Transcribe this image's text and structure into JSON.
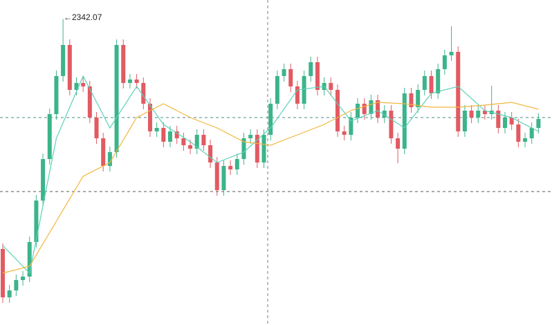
{
  "chart_data": {
    "type": "candlestick",
    "open": [
      2259,
      2241.5,
      2244,
      2247.75,
      2249,
      2261.5,
      2276.5,
      2291.5,
      2307.75,
      2321.5,
      2332.75,
      2316.5,
      2319,
      2317.75,
      2306.5,
      2299,
      2289,
      2294,
      2332.75,
      2319,
      2320.25,
      2319,
      2311.5,
      2301.5,
      2302.75,
      2297.75,
      2301.5,
      2299,
      2296.5,
      2295.25,
      2300.25,
      2296.5,
      2290.25,
      2280.25,
      2289,
      2287.75,
      2291.5,
      2299,
      2300.25,
      2290.25,
      2300.25,
      2311.5,
      2321.5,
      2324,
      2317.75,
      2311.5,
      2321.5,
      2326.5,
      2316.5,
      2319,
      2316.5,
      2301.5,
      2300.25,
      2306.5,
      2311.5,
      2307.75,
      2312.75,
      2306.5,
      2309,
      2299,
      2295.25,
      2315.25,
      2310.25,
      2316.5,
      2321.5,
      2315.25,
      2324,
      2329,
      2330.25,
      2301.5,
      2309,
      2306.5,
      2309,
      2307.75,
      2309,
      2302.75,
      2306.5,
      2304,
      2297.75,
      2299,
      2302.75
    ],
    "high": [
      2261,
      2246,
      2249.75,
      2251,
      2263.5,
      2278.5,
      2293.5,
      2309.75,
      2323.5,
      2342.07,
      2334.75,
      2321,
      2321,
      2319.75,
      2308.5,
      2301,
      2296,
      2334.75,
      2334.75,
      2322.25,
      2322.25,
      2321,
      2313.5,
      2304.75,
      2304.75,
      2303.5,
      2303.5,
      2301,
      2298.5,
      2302.25,
      2302.25,
      2298.5,
      2292.25,
      2291,
      2291,
      2293.5,
      2301,
      2302.25,
      2302.25,
      2302.25,
      2313.5,
      2323.5,
      2326,
      2326,
      2319.75,
      2323.5,
      2328.5,
      2328.5,
      2321,
      2321,
      2318.5,
      2303.5,
      2308.5,
      2313.5,
      2313.5,
      2314.75,
      2314.75,
      2311,
      2311,
      2301,
      2317.25,
      2317.25,
      2318.5,
      2323.5,
      2323.5,
      2326,
      2331,
      2339.5,
      2332.25,
      2311,
      2311,
      2311,
      2311,
      2318,
      2311,
      2308.5,
      2308.5,
      2306,
      2301,
      2304.75,
      2308
    ],
    "low": [
      2239.5,
      2239.5,
      2242,
      2245.75,
      2247,
      2259.5,
      2274.5,
      2289.5,
      2305.75,
      2319.5,
      2314.5,
      2314.5,
      2315.75,
      2304.5,
      2297,
      2287,
      2287,
      2292,
      2317,
      2317,
      2317,
      2309.5,
      2299.5,
      2299.5,
      2295.75,
      2295.75,
      2297,
      2294.5,
      2293.25,
      2293.25,
      2294.5,
      2288.25,
      2278.25,
      2278.25,
      2285.75,
      2285.75,
      2289.5,
      2297,
      2288.25,
      2288.25,
      2298.25,
      2309.5,
      2319.5,
      2315.75,
      2309.5,
      2309.5,
      2319.5,
      2314.5,
      2314.5,
      2314.5,
      2299.5,
      2298.25,
      2298.25,
      2304.5,
      2305.75,
      2305.75,
      2304.5,
      2304.5,
      2297,
      2290,
      2293.25,
      2308.25,
      2308.25,
      2314.5,
      2313.25,
      2313.25,
      2322,
      2327,
      2299.5,
      2299.5,
      2304.5,
      2304.5,
      2305.75,
      2305.75,
      2300.75,
      2300.75,
      2302,
      2295.75,
      2295.75,
      2297,
      2300.75
    ],
    "close": [
      2241.5,
      2244,
      2247.75,
      2249,
      2261.5,
      2276.5,
      2291.5,
      2307.75,
      2321.5,
      2332.75,
      2316.5,
      2319,
      2317.75,
      2306.5,
      2299,
      2289,
      2294,
      2332.75,
      2319,
      2320.25,
      2319,
      2311.5,
      2301.5,
      2302.75,
      2297.75,
      2301.5,
      2299,
      2296.5,
      2295.25,
      2300.25,
      2296.5,
      2290.25,
      2280.25,
      2289,
      2287.75,
      2291.5,
      2299,
      2300.25,
      2290.25,
      2300.25,
      2311.5,
      2321.5,
      2324,
      2317.75,
      2311.5,
      2321.5,
      2326.5,
      2316.5,
      2319,
      2316.5,
      2301.5,
      2300.25,
      2306.5,
      2311.5,
      2307.75,
      2312.75,
      2306.5,
      2309,
      2299,
      2295.25,
      2315.25,
      2310.25,
      2316.5,
      2321.5,
      2315.25,
      2324,
      2329,
      2330.25,
      2301.5,
      2309,
      2306.5,
      2309,
      2307.75,
      2309,
      2302.75,
      2306.5,
      2304,
      2297.75,
      2299,
      2302.75,
      2306
    ],
    "up_color": "#3cb48a",
    "down_color": "#e25a62",
    "lines": [
      {
        "color": "#5ad1b9",
        "x": [
          0,
          4,
          8,
          12,
          16,
          20,
          24,
          28,
          32,
          36,
          40,
          44,
          48,
          52,
          56,
          60,
          64,
          68,
          72,
          76,
          80
        ],
        "values": [
          2260.25,
          2250.25,
          2299,
          2321.5,
          2302.75,
          2317.75,
          2304,
          2297.75,
          2290.25,
          2294,
          2302.75,
          2316.5,
          2317.75,
          2305.25,
          2309,
          2302.75,
          2315.25,
          2317.75,
          2309,
          2306.5,
          2301.5
        ]
      },
      {
        "color": "#f2b53b",
        "x": [
          0,
          4,
          8,
          12,
          16,
          20,
          24,
          28,
          32,
          36,
          40,
          44,
          48,
          52,
          56,
          60,
          64,
          68,
          72,
          76,
          80
        ],
        "values": [
          2250.25,
          2252.75,
          2269,
          2285.25,
          2290.25,
          2306.5,
          2311.5,
          2306.5,
          2302.75,
          2297.75,
          2296.5,
          2300.25,
          2304,
          2309,
          2312,
          2311.5,
          2310.25,
          2310.25,
          2311,
          2312,
          2309.5
        ]
      }
    ],
    "ylim": [
      2231.5,
      2349
    ]
  }
}
